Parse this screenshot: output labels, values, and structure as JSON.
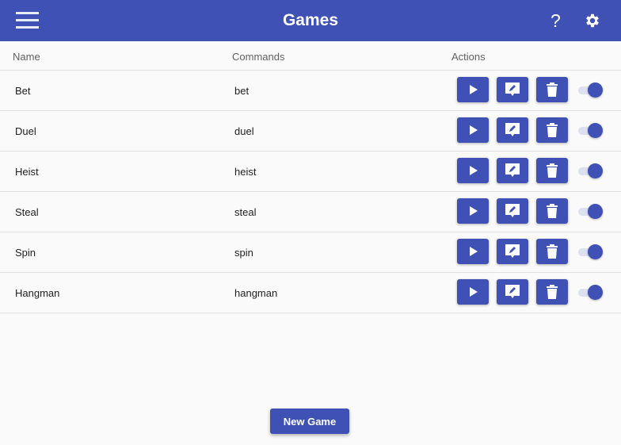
{
  "header": {
    "title": "Games",
    "menu_icon": "hamburger-icon",
    "help_label": "?",
    "settings_icon": "gear-icon"
  },
  "accent": "#3f51b5",
  "table": {
    "columns": [
      "Name",
      "Commands",
      "Actions"
    ],
    "rows": [
      {
        "name": "Bet",
        "command": "bet",
        "enabled": true
      },
      {
        "name": "Duel",
        "command": "duel",
        "enabled": true
      },
      {
        "name": "Heist",
        "command": "heist",
        "enabled": true
      },
      {
        "name": "Steal",
        "command": "steal",
        "enabled": true
      },
      {
        "name": "Spin",
        "command": "spin",
        "enabled": true
      },
      {
        "name": "Hangman",
        "command": "hangman",
        "enabled": true
      }
    ]
  },
  "new_game_label": "New Game"
}
